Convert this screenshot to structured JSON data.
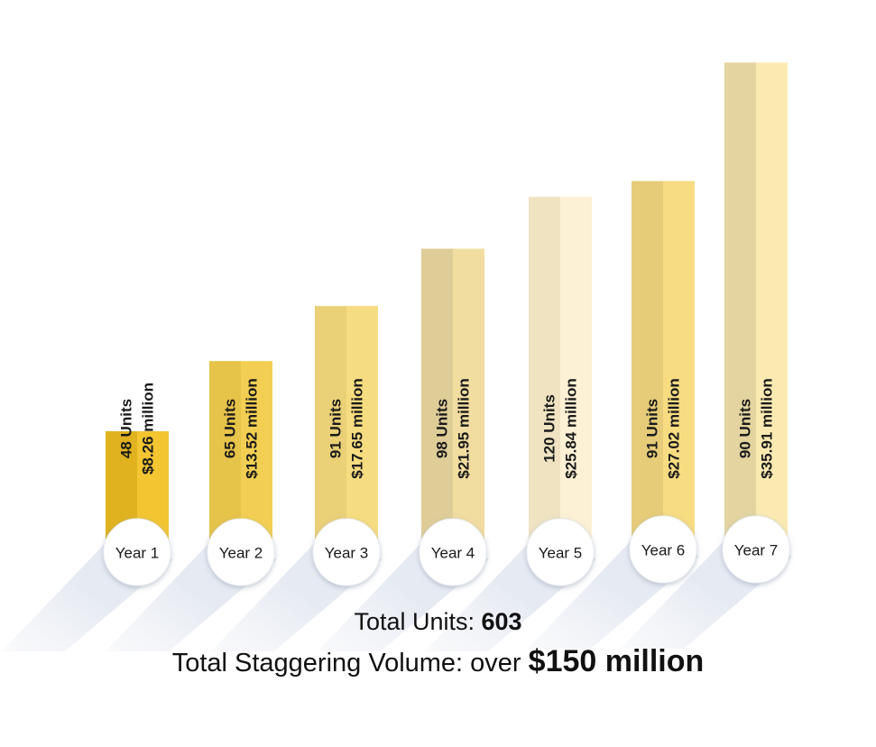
{
  "chart_data": {
    "type": "bar",
    "categories": [
      "Year 1",
      "Year 2",
      "Year 3",
      "Year 4",
      "Year 5",
      "Year 6",
      "Year 7"
    ],
    "series": [
      {
        "values": [
          48,
          65,
          91,
          98,
          120,
          91,
          90
        ],
        "labels": [
          "48 Units",
          "65 Units",
          "91 Units",
          "98 Units",
          "120 Units",
          "91 Units",
          "90 Units"
        ]
      },
      {
        "values": [
          8.26,
          13.52,
          17.65,
          21.95,
          25.84,
          27.02,
          35.91
        ],
        "labels": [
          "$8.26 million",
          "$13.52 million",
          "$17.65 million",
          "$21.95 million",
          "$25.84 million",
          "$27.02 million",
          "$35.91 million"
        ]
      }
    ],
    "bar_height_encodes": "volume",
    "ylim": [
      0,
      40
    ],
    "grid": false,
    "legend": "none"
  },
  "colors": {
    "bar_light": [
      "#f2c531",
      "#f2cf52",
      "#f6dc80",
      "#f2dda1",
      "#fcf1d5",
      "#f7dc82",
      "#faeab2"
    ],
    "bar_dark": [
      "#e0b21f",
      "#e6c349",
      "#ead077",
      "#dfcd98",
      "#efe3c2",
      "#e6cc78",
      "#e3d4a0"
    ],
    "shadow": "#d7dde9"
  },
  "summary": {
    "units_label": "Total Units: ",
    "units_value": "603",
    "volume_label": "Total Staggering Volume: over ",
    "volume_value": "$150 million"
  }
}
